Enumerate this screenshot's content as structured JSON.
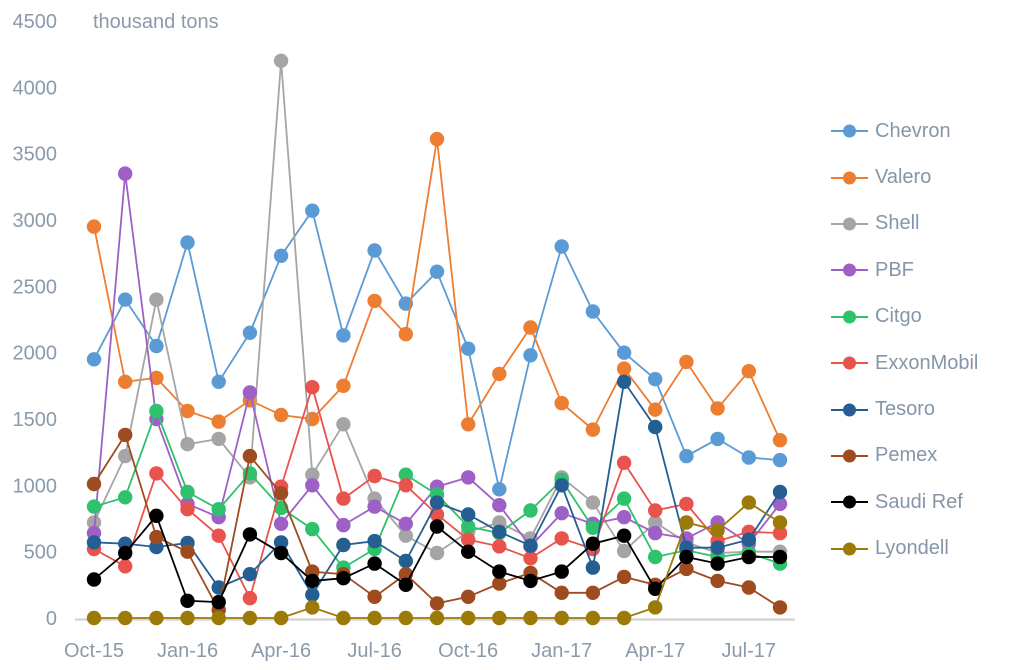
{
  "chart_data": {
    "type": "line",
    "title": "thousand tons",
    "xlabel": "",
    "ylabel": "thousand tons",
    "ylim": [
      0,
      4500
    ],
    "grid": false,
    "legend_position": "right",
    "marker": "circle",
    "axis_color": "#d6d6d6",
    "label_color": "#8a9aab",
    "categories": [
      "Oct-15",
      "Nov-15",
      "Dec-15",
      "Jan-16",
      "Feb-16",
      "Mar-16",
      "Apr-16",
      "May-16",
      "Jun-16",
      "Jul-16",
      "Aug-16",
      "Sep-16",
      "Oct-16",
      "Nov-16",
      "Dec-16",
      "Jan-17",
      "Feb-17",
      "Mar-17",
      "Apr-17",
      "May-17",
      "Jun-17",
      "Jul-17",
      "Aug-17"
    ],
    "x_tick_labels": [
      "Oct-15",
      "Jan-16",
      "Apr-16",
      "Jul-16",
      "Oct-16",
      "Jan-17",
      "Apr-17",
      "Jul-17"
    ],
    "x_tick_indices": [
      0,
      3,
      6,
      9,
      12,
      15,
      18,
      21
    ],
    "y_ticks": [
      0,
      500,
      1000,
      1500,
      2000,
      2500,
      3000,
      3500,
      4000,
      4500
    ],
    "series": [
      {
        "name": "Chevron",
        "color": "#5b9bd5",
        "values": [
          1950,
          2400,
          2050,
          2830,
          1780,
          2150,
          2730,
          3070,
          2130,
          2770,
          2370,
          2610,
          2030,
          970,
          1980,
          2800,
          2310,
          2000,
          1800,
          1220,
          1350,
          1210,
          1190
        ]
      },
      {
        "name": "Valero",
        "color": "#ed7d31",
        "values": [
          2950,
          1780,
          1810,
          1560,
          1480,
          1640,
          1530,
          1500,
          1750,
          2390,
          2140,
          3610,
          1460,
          1840,
          2190,
          1620,
          1420,
          1880,
          1570,
          1930,
          1580,
          1860,
          1340
        ]
      },
      {
        "name": "Shell",
        "color": "#a5a5a5",
        "values": [
          720,
          1220,
          2400,
          1310,
          1350,
          1060,
          4200,
          1080,
          1460,
          900,
          620,
          490,
          650,
          720,
          600,
          1060,
          870,
          505,
          720,
          570,
          490,
          500,
          500
        ]
      },
      {
        "name": "PBF",
        "color": "#9e60c6",
        "values": [
          640,
          3350,
          1500,
          860,
          760,
          1700,
          710,
          1000,
          700,
          840,
          710,
          990,
          1060,
          850,
          540,
          790,
          710,
          760,
          640,
          600,
          720,
          560,
          860
        ]
      },
      {
        "name": "Citgo",
        "color": "#2dc26b",
        "values": [
          840,
          910,
          1560,
          950,
          820,
          1090,
          830,
          670,
          380,
          520,
          1080,
          930,
          690,
          640,
          810,
          1040,
          680,
          900,
          460,
          510,
          460,
          490,
          410
        ]
      },
      {
        "name": "ExxonMobil",
        "color": "#e8534e",
        "values": [
          520,
          390,
          1090,
          820,
          620,
          150,
          990,
          1740,
          900,
          1070,
          1000,
          780,
          590,
          540,
          450,
          600,
          520,
          1170,
          810,
          860,
          580,
          650,
          640
        ]
      },
      {
        "name": "Tesoro",
        "color": "#255e91",
        "values": [
          570,
          560,
          535,
          565,
          230,
          330,
          570,
          175,
          550,
          580,
          430,
          870,
          780,
          650,
          545,
          1000,
          380,
          1780,
          1440,
          530,
          530,
          590,
          950
        ]
      },
      {
        "name": "Pemex",
        "color": "#9e4b20",
        "values": [
          1010,
          1380,
          610,
          500,
          60,
          1220,
          940,
          350,
          330,
          160,
          330,
          110,
          160,
          260,
          340,
          190,
          190,
          310,
          250,
          370,
          280,
          230,
          80
        ]
      },
      {
        "name": "Saudi Ref",
        "color": "#000000",
        "values": [
          290,
          490,
          770,
          130,
          120,
          630,
          490,
          280,
          300,
          410,
          250,
          690,
          500,
          350,
          280,
          350,
          560,
          620,
          220,
          460,
          410,
          460,
          460
        ]
      },
      {
        "name": "Lyondell",
        "color": "#9c7a08",
        "values": [
          0,
          0,
          0,
          0,
          0,
          0,
          0,
          80,
          0,
          0,
          0,
          0,
          0,
          0,
          0,
          0,
          0,
          0,
          80,
          720,
          660,
          870,
          720
        ]
      }
    ]
  }
}
